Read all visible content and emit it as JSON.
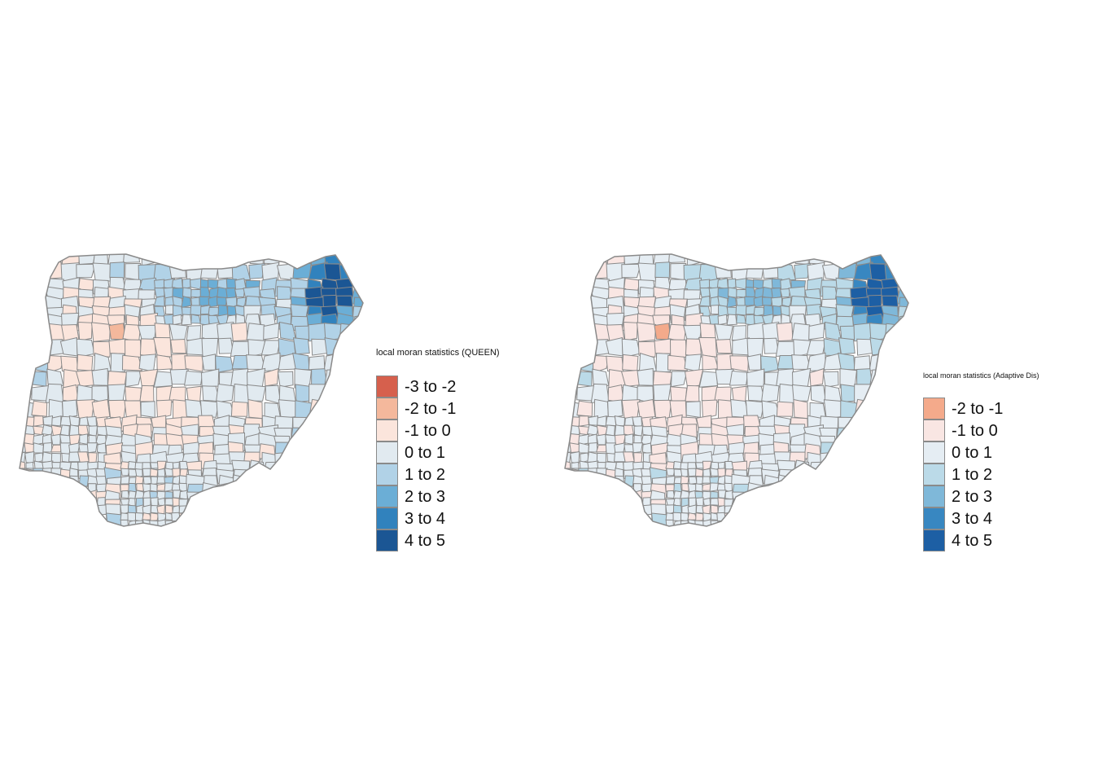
{
  "maps": [
    {
      "id": "queen",
      "legend": {
        "title": "local moran statistics (QUEEN)",
        "classes": [
          {
            "label": "-3 to -2",
            "color": "#d6604d"
          },
          {
            "label": "-2 to -1",
            "color": "#f4b89c"
          },
          {
            "label": "-1 to 0",
            "color": "#fbe5dc"
          },
          {
            "label": "0 to 1",
            "color": "#e1eaf0"
          },
          {
            "label": "1 to 2",
            "color": "#b1d2e7"
          },
          {
            "label": "2 to 3",
            "color": "#6baed6"
          },
          {
            "label": "3 to 4",
            "color": "#3182bd"
          },
          {
            "label": "4 to 5",
            "color": "#1b5694"
          }
        ]
      }
    },
    {
      "id": "adaptive",
      "legend": {
        "title": "local moran statistics (Adaptive Dis)",
        "classes": [
          {
            "label": "-2 to -1",
            "color": "#f4aa8b"
          },
          {
            "label": "-1 to 0",
            "color": "#f9e6e3"
          },
          {
            "label": "0 to 1",
            "color": "#e5edf3"
          },
          {
            "label": "1 to 2",
            "color": "#bbdae8"
          },
          {
            "label": "2 to 3",
            "color": "#7fb8d9"
          },
          {
            "label": "3 to 4",
            "color": "#3887c1"
          },
          {
            "label": "4 to 5",
            "color": "#1d5fa4"
          }
        ]
      }
    }
  ]
}
